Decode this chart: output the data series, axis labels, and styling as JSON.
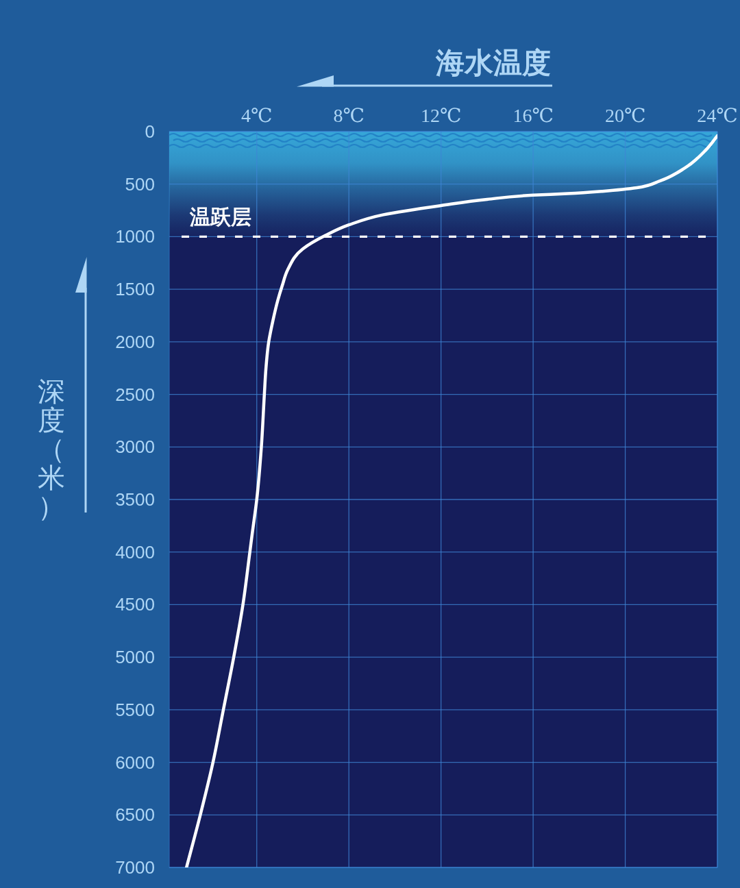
{
  "chart_data": {
    "type": "line",
    "xlabel": "海水温度",
    "ylabel": "深度（米）",
    "x": [
      24.0,
      23.5,
      22.6,
      21.5,
      20.5,
      19.0,
      17.5,
      16.0,
      14.0,
      12.0,
      9.5,
      8.0,
      7.0,
      6.0,
      5.35,
      5.1,
      4.92,
      4.7,
      4.52,
      4.4,
      4.33,
      4.2,
      4.0,
      3.8,
      3.7,
      3.4,
      3.0,
      2.55,
      2.1,
      1.55,
      0.95
    ],
    "values": [
      40,
      175,
      345,
      470,
      535,
      568,
      590,
      605,
      645,
      704,
      791,
      888,
      986,
      1116,
      1312,
      1470,
      1600,
      1800,
      2000,
      2250,
      2500,
      3000,
      3500,
      3830,
      4000,
      4500,
      5000,
      5500,
      6000,
      6500,
      7000
    ],
    "color": "#ffffff",
    "line_style": "solid",
    "xlim": [
      0.2,
      24
    ],
    "xticks": [
      {
        "value": 4,
        "label": "4℃"
      },
      {
        "value": 8,
        "label": "8℃"
      },
      {
        "value": 12,
        "label": "12℃"
      },
      {
        "value": 16,
        "label": "16℃"
      },
      {
        "value": 20,
        "label": "20℃"
      },
      {
        "value": 24,
        "label": "24℃"
      }
    ],
    "ylim": [
      7000,
      0
    ],
    "yticks": [
      0,
      500,
      1000,
      1500,
      2000,
      2500,
      3000,
      3500,
      4000,
      4500,
      5000,
      5500,
      6000,
      6500,
      7000
    ],
    "grid": true,
    "ref_lines": [
      {
        "axis": "y",
        "value": 1000,
        "label": "温跃层",
        "color": "#ffffff",
        "line_style": "dashed"
      }
    ],
    "bands": [
      {
        "axis": "y",
        "from": 0,
        "to": 1000,
        "color": "#36a7d9"
      }
    ]
  }
}
